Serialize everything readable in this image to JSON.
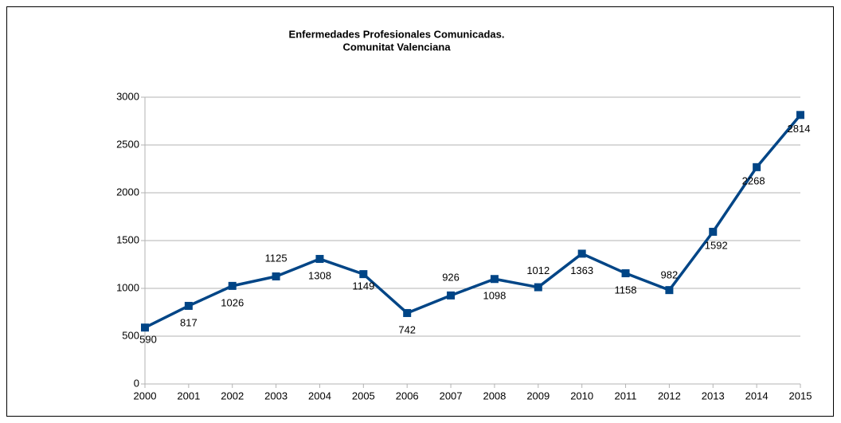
{
  "chart_data": {
    "type": "line",
    "title": [
      "Enfermedades Profesionales Comunicadas.",
      "Comunitat Valenciana"
    ],
    "x": [
      2000,
      2001,
      2002,
      2003,
      2004,
      2005,
      2006,
      2007,
      2008,
      2009,
      2010,
      2011,
      2012,
      2013,
      2014,
      2015
    ],
    "series": [
      {
        "name": null,
        "color": "#004586",
        "values": [
          590,
          817,
          1026,
          1125,
          1308,
          1149,
          742,
          926,
          1098,
          1012,
          1363,
          1158,
          982,
          1592,
          2268,
          2814
        ]
      }
    ],
    "xlim": [
      2000,
      2015
    ],
    "xticks": [
      2000,
      2001,
      2002,
      2003,
      2004,
      2005,
      2006,
      2007,
      2008,
      2009,
      2010,
      2011,
      2012,
      2013,
      2014,
      2015
    ],
    "ylim": [
      0,
      3000
    ],
    "yticks": [
      0,
      500,
      1000,
      1500,
      2000,
      2500,
      3000
    ],
    "grid": true
  }
}
